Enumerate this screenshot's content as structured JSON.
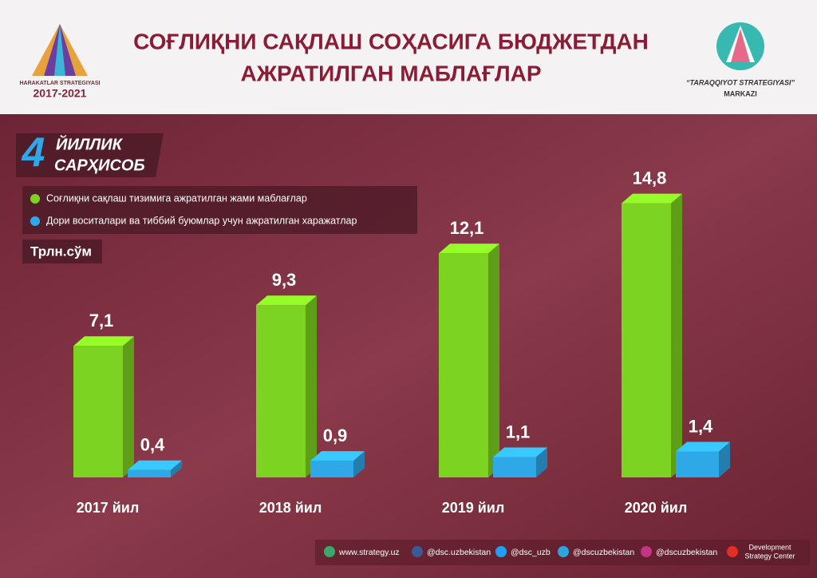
{
  "header": {
    "logo_left_name": "HARAKATLAR STRATEGIYASI",
    "logo_left_years": "2017-2021",
    "logo_right_name": "“TARAQQIYOT STRATEGIYASI”",
    "logo_right_sub": "MARKAZI"
  },
  "badge": {
    "number": "4",
    "line1": "ЙИЛЛИК",
    "line2": "САРҲИСОБ"
  },
  "chart_data": {
    "type": "bar",
    "title": [
      "СОҒЛИҚНИ САҚЛАШ СОҲАСИГА БЮДЖЕТДАН",
      "АЖРАТИЛГАН МАБЛАҒЛАР"
    ],
    "unit": "Трлн.сўм",
    "categories": [
      "2017 йил",
      "2018 йил",
      "2019 йил",
      "2020 йил"
    ],
    "series": [
      {
        "name": "Соғлиқни сақлаш тизимига ажратилган жами маблағлар",
        "color": "#7dd321",
        "values": [
          7.1,
          9.3,
          12.1,
          14.8
        ],
        "value_labels": [
          "7,1",
          "9,3",
          "12,1",
          "14,8"
        ]
      },
      {
        "name": "Дори воситалари ва тиббий буюмлар учун ажратилган харажатлар",
        "color": "#2fa8e8",
        "values": [
          0.4,
          0.9,
          1.1,
          1.4
        ],
        "value_labels": [
          "0,4",
          "0,9",
          "1,1",
          "1,4"
        ]
      }
    ]
  },
  "footer": {
    "links": [
      "www.strategy.uz",
      "@dsc.uzbekistan",
      "@dsc_uzb",
      "@dscuzbekistan",
      "@dscuzbekistan"
    ],
    "org_line1": "Development",
    "org_line2": "Strategy Center"
  }
}
